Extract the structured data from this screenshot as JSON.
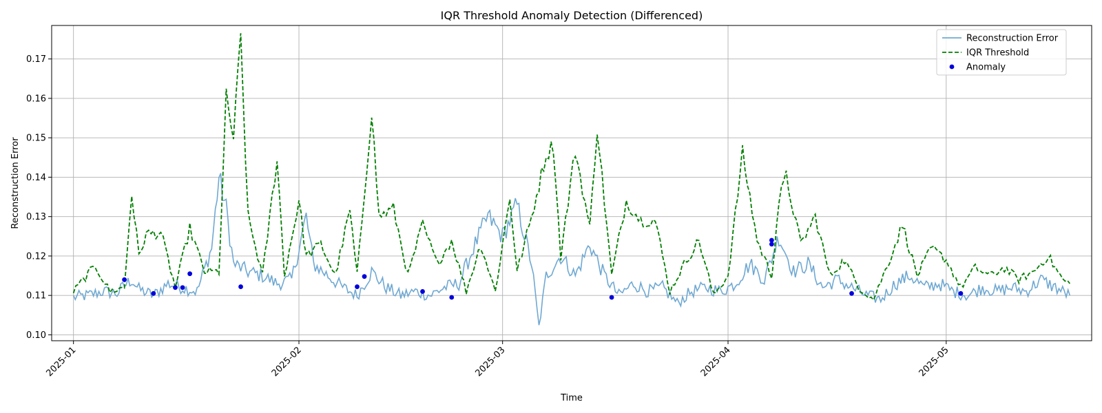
{
  "chart_data": {
    "type": "line",
    "title": "IQR Threshold Anomaly Detection (Differenced)",
    "xlabel": "Time",
    "ylabel": "Reconstruction Error",
    "x_range": [
      "2024-12-29",
      "2025-05-21"
    ],
    "ylim": [
      0.0985,
      0.1785
    ],
    "y_ticks": [
      0.1,
      0.11,
      0.12,
      0.13,
      0.14,
      0.15,
      0.16,
      0.17
    ],
    "x_ticks": [
      "2025-01",
      "2025-02",
      "2025-03",
      "2025-04",
      "2025-05"
    ],
    "x_tick_dates": [
      "2025-01-01",
      "2025-02-01",
      "2025-03-01",
      "2025-04-01",
      "2025-05-01"
    ],
    "grid": true,
    "legend_position": "top-right",
    "colors": {
      "error": "#6fa8d2",
      "threshold": "#007f00",
      "anomaly": "#0000dd"
    },
    "series": [
      {
        "name": "Reconstruction Error",
        "style": "solid",
        "points": [
          [
            "2025-01-01",
            0.1095
          ],
          [
            "2025-01-03",
            0.11
          ],
          [
            "2025-01-05",
            0.111
          ],
          [
            "2025-01-07",
            0.1105
          ],
          [
            "2025-01-08",
            0.1125
          ],
          [
            "2025-01-09",
            0.114
          ],
          [
            "2025-01-10",
            0.1115
          ],
          [
            "2025-01-12",
            0.11
          ],
          [
            "2025-01-14",
            0.113
          ],
          [
            "2025-01-16",
            0.112
          ],
          [
            "2025-01-18",
            0.111
          ],
          [
            "2025-01-20",
            0.122
          ],
          [
            "2025-01-21",
            0.14
          ],
          [
            "2025-01-22",
            0.132
          ],
          [
            "2025-01-23",
            0.118
          ],
          [
            "2025-01-25",
            0.116
          ],
          [
            "2025-01-27",
            0.115
          ],
          [
            "2025-01-29",
            0.113
          ],
          [
            "2025-01-31",
            0.114
          ],
          [
            "2025-02-02",
            0.13
          ],
          [
            "2025-02-03",
            0.118
          ],
          [
            "2025-02-05",
            0.115
          ],
          [
            "2025-02-07",
            0.112
          ],
          [
            "2025-02-09",
            0.11
          ],
          [
            "2025-02-11",
            0.116
          ],
          [
            "2025-02-13",
            0.112
          ],
          [
            "2025-02-15",
            0.11
          ],
          [
            "2025-02-17",
            0.111
          ],
          [
            "2025-02-19",
            0.11
          ],
          [
            "2025-02-21",
            0.112
          ],
          [
            "2025-02-23",
            0.113
          ],
          [
            "2025-02-25",
            0.122
          ],
          [
            "2025-02-27",
            0.13
          ],
          [
            "2025-03-01",
            0.125
          ],
          [
            "2025-03-03",
            0.133
          ],
          [
            "2025-03-05",
            0.118
          ],
          [
            "2025-03-06",
            0.102
          ],
          [
            "2025-03-07",
            0.115
          ],
          [
            "2025-03-09",
            0.12
          ],
          [
            "2025-03-11",
            0.115
          ],
          [
            "2025-03-13",
            0.123
          ],
          [
            "2025-03-15",
            0.115
          ],
          [
            "2025-03-17",
            0.11
          ],
          [
            "2025-03-19",
            0.113
          ],
          [
            "2025-03-21",
            0.111
          ],
          [
            "2025-03-23",
            0.112
          ],
          [
            "2025-03-25",
            0.108
          ],
          [
            "2025-03-27",
            0.111
          ],
          [
            "2025-03-29",
            0.112
          ],
          [
            "2025-03-31",
            0.111
          ],
          [
            "2025-04-02",
            0.113
          ],
          [
            "2025-04-04",
            0.118
          ],
          [
            "2025-04-06",
            0.114
          ],
          [
            "2025-04-08",
            0.125
          ],
          [
            "2025-04-10",
            0.116
          ],
          [
            "2025-04-12",
            0.118
          ],
          [
            "2025-04-14",
            0.112
          ],
          [
            "2025-04-16",
            0.114
          ],
          [
            "2025-04-18",
            0.112
          ],
          [
            "2025-04-20",
            0.11
          ],
          [
            "2025-04-22",
            0.109
          ],
          [
            "2025-04-24",
            0.113
          ],
          [
            "2025-04-26",
            0.115
          ],
          [
            "2025-04-28",
            0.112
          ],
          [
            "2025-04-30",
            0.113
          ],
          [
            "2025-05-02",
            0.111
          ],
          [
            "2025-05-04",
            0.11
          ],
          [
            "2025-05-06",
            0.112
          ],
          [
            "2025-05-08",
            0.111
          ],
          [
            "2025-05-10",
            0.112
          ],
          [
            "2025-05-12",
            0.111
          ],
          [
            "2025-05-14",
            0.114
          ],
          [
            "2025-05-16",
            0.112
          ],
          [
            "2025-05-18",
            0.11
          ]
        ]
      },
      {
        "name": "IQR Threshold",
        "style": "dashed",
        "points": [
          [
            "2025-01-01",
            0.111
          ],
          [
            "2025-01-04",
            0.1175
          ],
          [
            "2025-01-06",
            0.111
          ],
          [
            "2025-01-08",
            0.112
          ],
          [
            "2025-01-09",
            0.136
          ],
          [
            "2025-01-10",
            0.12
          ],
          [
            "2025-01-11",
            0.1255
          ],
          [
            "2025-01-13",
            0.126
          ],
          [
            "2025-01-15",
            0.112
          ],
          [
            "2025-01-17",
            0.127
          ],
          [
            "2025-01-19",
            0.116
          ],
          [
            "2025-01-21",
            0.116
          ],
          [
            "2025-01-22",
            0.16
          ],
          [
            "2025-01-23",
            0.15
          ],
          [
            "2025-01-24",
            0.175
          ],
          [
            "2025-01-25",
            0.13
          ],
          [
            "2025-01-27",
            0.115
          ],
          [
            "2025-01-29",
            0.145
          ],
          [
            "2025-01-30",
            0.115
          ],
          [
            "2025-02-01",
            0.134
          ],
          [
            "2025-02-02",
            0.12
          ],
          [
            "2025-02-04",
            0.123
          ],
          [
            "2025-02-06",
            0.115
          ],
          [
            "2025-02-08",
            0.1315
          ],
          [
            "2025-02-09",
            0.115
          ],
          [
            "2025-02-11",
            0.157
          ],
          [
            "2025-02-12",
            0.13
          ],
          [
            "2025-02-14",
            0.132
          ],
          [
            "2025-02-16",
            0.115
          ],
          [
            "2025-02-18",
            0.128
          ],
          [
            "2025-02-20",
            0.118
          ],
          [
            "2025-02-22",
            0.124
          ],
          [
            "2025-02-24",
            0.111
          ],
          [
            "2025-02-26",
            0.123
          ],
          [
            "2025-02-28",
            0.111
          ],
          [
            "2025-03-02",
            0.135
          ],
          [
            "2025-03-03",
            0.116
          ],
          [
            "2025-03-05",
            0.13
          ],
          [
            "2025-03-07",
            0.146
          ],
          [
            "2025-03-08",
            0.148
          ],
          [
            "2025-03-09",
            0.12
          ],
          [
            "2025-03-11",
            0.147
          ],
          [
            "2025-03-13",
            0.127
          ],
          [
            "2025-03-14",
            0.153
          ],
          [
            "2025-03-16",
            0.115
          ],
          [
            "2025-03-18",
            0.134
          ],
          [
            "2025-03-20",
            0.129
          ],
          [
            "2025-03-22",
            0.129
          ],
          [
            "2025-03-24",
            0.111
          ],
          [
            "2025-03-26",
            0.118
          ],
          [
            "2025-03-28",
            0.124
          ],
          [
            "2025-03-30",
            0.11
          ],
          [
            "2025-04-01",
            0.115
          ],
          [
            "2025-04-03",
            0.146
          ],
          [
            "2025-04-05",
            0.124
          ],
          [
            "2025-04-07",
            0.115
          ],
          [
            "2025-04-08",
            0.134
          ],
          [
            "2025-04-09",
            0.14
          ],
          [
            "2025-04-11",
            0.123
          ],
          [
            "2025-04-13",
            0.13
          ],
          [
            "2025-04-15",
            0.115
          ],
          [
            "2025-04-17",
            0.119
          ],
          [
            "2025-04-19",
            0.112
          ],
          [
            "2025-04-21",
            0.109
          ],
          [
            "2025-04-23",
            0.118
          ],
          [
            "2025-04-25",
            0.128
          ],
          [
            "2025-04-27",
            0.115
          ],
          [
            "2025-04-29",
            0.122
          ],
          [
            "2025-05-01",
            0.119
          ],
          [
            "2025-05-03",
            0.112
          ],
          [
            "2025-05-05",
            0.117
          ],
          [
            "2025-05-07",
            0.115
          ],
          [
            "2025-05-09",
            0.117
          ],
          [
            "2025-05-11",
            0.114
          ],
          [
            "2025-05-13",
            0.116
          ],
          [
            "2025-05-15",
            0.12
          ],
          [
            "2025-05-17",
            0.114
          ],
          [
            "2025-05-18",
            0.113
          ]
        ]
      },
      {
        "name": "Anomaly",
        "style": "marker",
        "points": [
          [
            "2025-01-08",
            0.114
          ],
          [
            "2025-01-12",
            0.1105
          ],
          [
            "2025-01-15",
            0.112
          ],
          [
            "2025-01-16",
            0.112
          ],
          [
            "2025-01-17",
            0.1155
          ],
          [
            "2025-01-24",
            0.1122
          ],
          [
            "2025-02-09",
            0.1122
          ],
          [
            "2025-02-10",
            0.1148
          ],
          [
            "2025-02-18",
            0.111
          ],
          [
            "2025-02-22",
            0.1095
          ],
          [
            "2025-03-16",
            0.1095
          ],
          [
            "2025-04-07",
            0.124
          ],
          [
            "2025-04-07",
            0.123
          ],
          [
            "2025-04-18",
            0.1105
          ],
          [
            "2025-05-03",
            0.1105
          ]
        ]
      }
    ]
  }
}
